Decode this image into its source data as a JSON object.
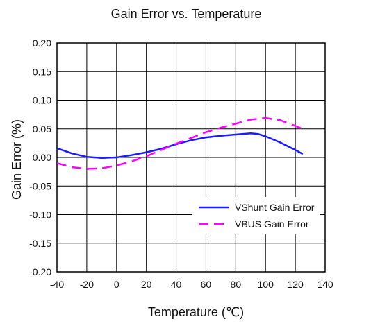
{
  "chart_data": {
    "type": "line",
    "title": "Gain Error vs. Temperature",
    "xlabel": "Temperature (℃)",
    "ylabel": "Gain Error (%)",
    "xlim": [
      -40,
      140
    ],
    "ylim": [
      -0.2,
      0.2
    ],
    "x_ticks": [
      "-40",
      "-20",
      "0",
      "20",
      "40",
      "60",
      "80",
      "100",
      "120",
      "140"
    ],
    "y_ticks": [
      "0.20",
      "0.15",
      "0.10",
      "0.05",
      "0.00",
      "-0.05",
      "-0.10",
      "-0.15",
      "-0.20"
    ],
    "grid": true,
    "legend_position": "lower-right",
    "series": [
      {
        "name": "VShunt Gain Error",
        "color": "#1a1aff",
        "style": "solid",
        "x": [
          -40,
          -30,
          -20,
          -10,
          0,
          10,
          20,
          30,
          40,
          50,
          60,
          70,
          80,
          90,
          95,
          100,
          110,
          120,
          125
        ],
        "y": [
          0.016,
          0.007,
          0.001,
          -0.001,
          0.0,
          0.004,
          0.009,
          0.015,
          0.023,
          0.03,
          0.035,
          0.038,
          0.04,
          0.042,
          0.041,
          0.037,
          0.026,
          0.013,
          0.006
        ]
      },
      {
        "name": "VBUS Gain Error",
        "color": "#ff00ff",
        "style": "dashed",
        "x": [
          -40,
          -30,
          -20,
          -10,
          0,
          10,
          20,
          30,
          40,
          50,
          60,
          70,
          80,
          90,
          100,
          110,
          120,
          125
        ],
        "y": [
          -0.01,
          -0.017,
          -0.02,
          -0.019,
          -0.014,
          -0.007,
          0.002,
          0.013,
          0.024,
          0.034,
          0.044,
          0.052,
          0.059,
          0.066,
          0.069,
          0.065,
          0.055,
          0.05
        ]
      }
    ]
  }
}
